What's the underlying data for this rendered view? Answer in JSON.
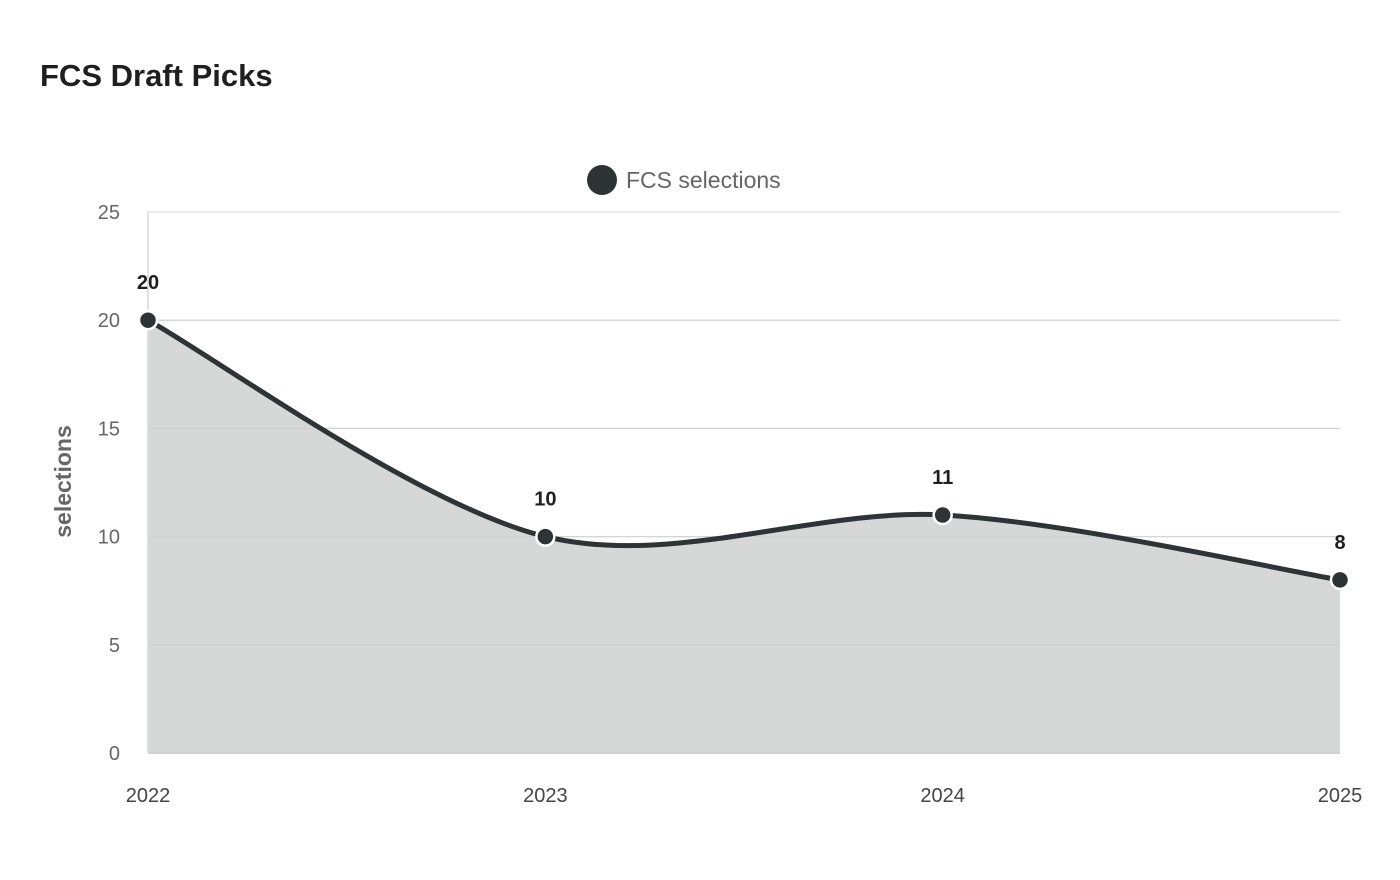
{
  "title": "FCS Draft Picks",
  "colors": {
    "series": "#2e3436",
    "area_fill": "#d6d8d7",
    "grid": "#e6e6e6",
    "text": "#666666"
  },
  "chart_data": {
    "type": "area",
    "title": "FCS Draft Picks",
    "x": [
      "2022",
      "2023",
      "2024",
      "2025"
    ],
    "series": [
      {
        "name": "FCS selections",
        "values": [
          20,
          10,
          11,
          8
        ]
      }
    ],
    "xlabel": "",
    "ylabel": "selections",
    "ylim": [
      0,
      25
    ],
    "yticks": [
      0,
      5,
      10,
      15,
      20,
      25
    ],
    "grid": true,
    "legend": "top-center",
    "data_labels": true,
    "smooth": true
  }
}
